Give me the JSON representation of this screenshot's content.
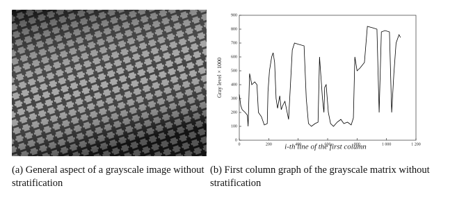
{
  "chart_data": {
    "type": "line",
    "xlabel": "i-th line of the first column",
    "ylabel": "Gray level × 1000",
    "xlim": [
      0,
      1200
    ],
    "xticks": [
      0,
      200,
      400,
      600,
      800,
      {
        "value": 1000,
        "label": "1 000"
      },
      {
        "value": 1200,
        "label": "1 200"
      }
    ],
    "ylim": [
      0,
      900
    ],
    "yticks": [
      0,
      100,
      200,
      300,
      400,
      500,
      600,
      700,
      800,
      900
    ],
    "color": "#000000",
    "x": [
      0,
      10,
      20,
      40,
      55,
      60,
      70,
      85,
      105,
      120,
      130,
      150,
      170,
      190,
      195,
      205,
      220,
      230,
      240,
      250,
      260,
      275,
      285,
      295,
      310,
      335,
      360,
      375,
      405,
      440,
      455,
      470,
      490,
      515,
      535,
      545,
      555,
      565,
      575,
      580,
      590,
      605,
      620,
      640,
      665,
      690,
      710,
      735,
      760,
      775,
      785,
      800,
      820,
      850,
      870,
      905,
      935,
      950,
      965,
      990,
      1020,
      1035,
      1050,
      1065,
      1085,
      1095
    ],
    "values": [
      330,
      250,
      220,
      200,
      180,
      100,
      480,
      400,
      420,
      400,
      200,
      170,
      110,
      120,
      350,
      500,
      600,
      630,
      560,
      300,
      230,
      320,
      220,
      250,
      280,
      150,
      650,
      700,
      690,
      680,
      300,
      120,
      100,
      120,
      130,
      600,
      450,
      300,
      200,
      380,
      400,
      200,
      120,
      100,
      130,
      150,
      120,
      130,
      110,
      160,
      600,
      500,
      520,
      560,
      820,
      810,
      800,
      200,
      780,
      790,
      780,
      200,
      480,
      700,
      760,
      740
    ]
  },
  "captions": [
    "(a) General aspect of a grayscale image without stratification",
    "(b) First column graph of the grayscale matrix without stratification"
  ]
}
